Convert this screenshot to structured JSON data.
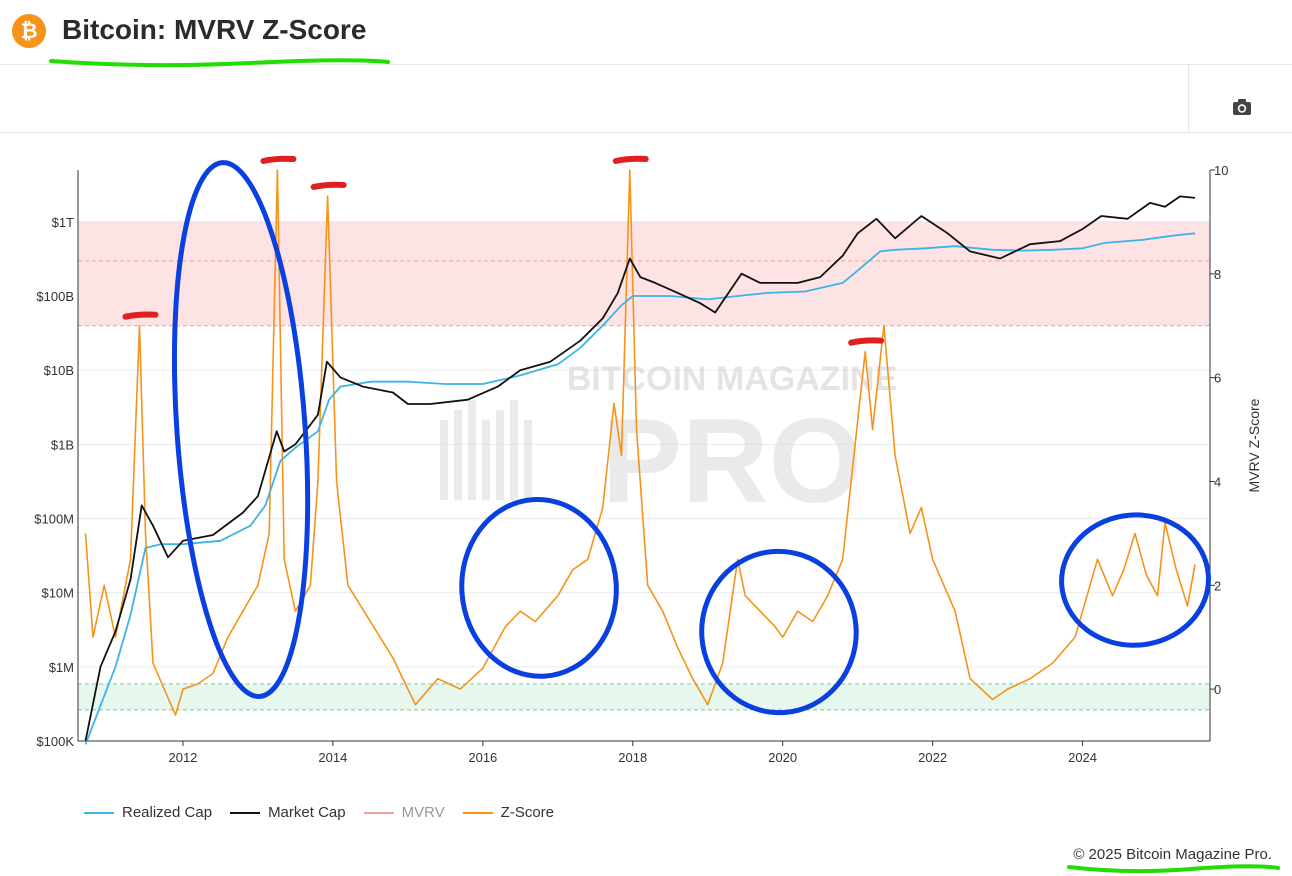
{
  "header": {
    "logo_glyph": "₿",
    "title": "Bitcoin: MVRV Z-Score"
  },
  "toolbar": {
    "camera_icon": "camera-icon"
  },
  "watermark": {
    "line1": "BITCOIN MAGAZINE",
    "line2": "PRO"
  },
  "legend": [
    {
      "label": "Realized Cap",
      "color": "#3cb4e5"
    },
    {
      "label": "Market Cap",
      "color": "#111111"
    },
    {
      "label": "MVRV",
      "color": "#f2a0a0"
    },
    {
      "label": "Z-Score",
      "color": "#f7931a"
    }
  ],
  "footer": {
    "copyright": "© 2025 Bitcoin Magazine Pro."
  },
  "colors": {
    "realized_cap": "#3cb4e5",
    "market_cap": "#111111",
    "z_score": "#f7931a",
    "red_band": "#fde3e3",
    "green_band": "#e6f7ee",
    "annotation_red": "#e02020",
    "annotation_blue": "#0a3fe0",
    "annotation_green": "#22dd00"
  },
  "chart_data": {
    "type": "line",
    "title": "",
    "x_ticks": [
      "2012",
      "2014",
      "2016",
      "2018",
      "2020",
      "2022",
      "2024"
    ],
    "x_range": [
      2010.6,
      2025.7
    ],
    "y_left": {
      "scale": "log",
      "range": [
        100000,
        5000000000000
      ],
      "ticks": [
        "$100K",
        "$1M",
        "$10M",
        "$100M",
        "$1B",
        "$10B",
        "$100B",
        "$1T"
      ],
      "tick_values": [
        100000,
        1000000,
        10000000,
        100000000,
        1000000000,
        10000000000,
        100000000000,
        1000000000000
      ]
    },
    "y_right": {
      "label": "MVRV Z-Score",
      "range": [
        -1,
        10
      ],
      "ticks": [
        "0",
        "2",
        "4",
        "6",
        "8",
        "10"
      ],
      "tick_values": [
        0,
        2,
        4,
        6,
        8,
        10
      ]
    },
    "bands": [
      {
        "axis": "right",
        "from": 7,
        "to": 9,
        "meaning": "red zone"
      },
      {
        "axis": "right",
        "from": -0.4,
        "to": 0.1,
        "meaning": "green zone"
      }
    ],
    "series": [
      {
        "name": "Realized Cap",
        "axis": "left",
        "x": [
          2010.7,
          2010.9,
          2011.1,
          2011.3,
          2011.5,
          2011.7,
          2012.0,
          2012.5,
          2012.9,
          2013.1,
          2013.3,
          2013.5,
          2013.8,
          2013.95,
          2014.1,
          2014.5,
          2015.0,
          2015.5,
          2016.0,
          2016.5,
          2017.0,
          2017.3,
          2017.6,
          2017.85,
          2018.0,
          2018.5,
          2019.0,
          2019.4,
          2019.8,
          2020.3,
          2020.8,
          2021.0,
          2021.3,
          2021.5,
          2021.9,
          2022.3,
          2022.8,
          2023.2,
          2023.6,
          2024.0,
          2024.3,
          2024.8,
          2025.2,
          2025.5
        ],
        "y": [
          90000,
          300000,
          1000000,
          5000000,
          40000000,
          45000000,
          45000000,
          50000000,
          80000000,
          150000000,
          600000000,
          900000000,
          1500000000,
          4000000000,
          6000000000,
          7000000000,
          7000000000,
          6500000000,
          6500000000,
          8500000000,
          12000000000,
          20000000000,
          40000000000,
          75000000000,
          100000000000,
          100000000000,
          90000000000,
          100000000000,
          110000000000,
          115000000000,
          150000000000,
          220000000000,
          400000000000,
          420000000000,
          440000000000,
          470000000000,
          420000000000,
          410000000000,
          420000000000,
          440000000000,
          520000000000,
          570000000000,
          650000000000,
          700000000000
        ]
      },
      {
        "name": "Market Cap",
        "axis": "left",
        "x": [
          2010.7,
          2010.9,
          2011.1,
          2011.3,
          2011.45,
          2011.6,
          2011.8,
          2012.0,
          2012.4,
          2012.8,
          2013.0,
          2013.25,
          2013.35,
          2013.5,
          2013.8,
          2013.92,
          2014.1,
          2014.4,
          2014.8,
          2015.0,
          2015.3,
          2015.8,
          2016.2,
          2016.5,
          2016.9,
          2017.3,
          2017.6,
          2017.8,
          2017.96,
          2018.1,
          2018.3,
          2018.6,
          2018.9,
          2019.1,
          2019.45,
          2019.7,
          2020.2,
          2020.5,
          2020.8,
          2021.0,
          2021.25,
          2021.5,
          2021.85,
          2022.2,
          2022.5,
          2022.9,
          2023.3,
          2023.7,
          2024.0,
          2024.25,
          2024.6,
          2024.9,
          2025.1,
          2025.3,
          2025.5
        ],
        "y": [
          100000,
          1000000,
          3000000,
          15000000,
          150000000,
          80000000,
          30000000,
          50000000,
          60000000,
          120000000,
          200000000,
          1500000000,
          800000000,
          1000000000,
          2500000000,
          13000000000,
          8000000000,
          6000000000,
          5000000000,
          3500000000,
          3500000000,
          4000000000,
          6000000000,
          10000000000,
          13000000000,
          25000000000,
          50000000000,
          110000000000,
          320000000000,
          180000000000,
          150000000000,
          110000000000,
          80000000000,
          60000000000,
          200000000000,
          150000000000,
          150000000000,
          180000000000,
          350000000000,
          700000000000,
          1100000000000,
          600000000000,
          1200000000000,
          700000000000,
          400000000000,
          320000000000,
          500000000000,
          550000000000,
          800000000000,
          1200000000000,
          1100000000000,
          1800000000000,
          1600000000000,
          2200000000000,
          2100000000000
        ]
      },
      {
        "name": "Z-Score",
        "axis": "right",
        "x": [
          2010.7,
          2010.8,
          2010.95,
          2011.1,
          2011.3,
          2011.42,
          2011.5,
          2011.6,
          2011.75,
          2011.9,
          2012.0,
          2012.2,
          2012.4,
          2012.6,
          2012.8,
          2013.0,
          2013.15,
          2013.26,
          2013.35,
          2013.5,
          2013.7,
          2013.8,
          2013.93,
          2014.05,
          2014.2,
          2014.5,
          2014.8,
          2015.0,
          2015.1,
          2015.4,
          2015.7,
          2016.0,
          2016.3,
          2016.5,
          2016.7,
          2017.0,
          2017.2,
          2017.4,
          2017.6,
          2017.75,
          2017.85,
          2017.96,
          2018.05,
          2018.2,
          2018.4,
          2018.6,
          2018.8,
          2019.0,
          2019.2,
          2019.4,
          2019.5,
          2019.7,
          2019.9,
          2020.0,
          2020.2,
          2020.4,
          2020.6,
          2020.8,
          2020.95,
          2021.1,
          2021.2,
          2021.35,
          2021.5,
          2021.7,
          2021.85,
          2022.0,
          2022.3,
          2022.5,
          2022.8,
          2023.0,
          2023.3,
          2023.6,
          2023.9,
          2024.0,
          2024.2,
          2024.4,
          2024.55,
          2024.7,
          2024.85,
          2025.0,
          2025.1,
          2025.25,
          2025.4,
          2025.5
        ],
        "y": [
          3.0,
          1.0,
          2.0,
          1.0,
          2.5,
          7.0,
          3.0,
          0.5,
          0.0,
          -0.5,
          0.0,
          0.1,
          0.3,
          1.0,
          1.5,
          2.0,
          3.0,
          10.0,
          2.5,
          1.5,
          2.0,
          4.0,
          9.5,
          4.0,
          2.0,
          1.3,
          0.6,
          0.0,
          -0.3,
          0.2,
          0.0,
          0.4,
          1.2,
          1.5,
          1.3,
          1.8,
          2.3,
          2.5,
          3.5,
          5.5,
          4.5,
          10.0,
          5.0,
          2.0,
          1.5,
          0.8,
          0.2,
          -0.3,
          0.5,
          2.5,
          1.8,
          1.5,
          1.2,
          1.0,
          1.5,
          1.3,
          1.8,
          2.5,
          4.5,
          6.5,
          5.0,
          7.0,
          4.5,
          3.0,
          3.5,
          2.5,
          1.5,
          0.2,
          -0.2,
          0.0,
          0.2,
          0.5,
          1.0,
          1.5,
          2.5,
          1.8,
          2.3,
          3.0,
          2.2,
          1.8,
          3.2,
          2.3,
          1.6,
          2.4
        ]
      }
    ],
    "annotations": {
      "red_marks_at": [
        2011.42,
        2013.26,
        2013.93,
        2017.96,
        2021.1
      ],
      "blue_circles": [
        [
          2012.0,
          2013.55
        ],
        [
          2015.8,
          2017.7
        ],
        [
          2019.0,
          2020.9
        ],
        [
          2023.8,
          2025.6
        ]
      ],
      "green_underlines": [
        "title",
        "copyright"
      ]
    }
  }
}
